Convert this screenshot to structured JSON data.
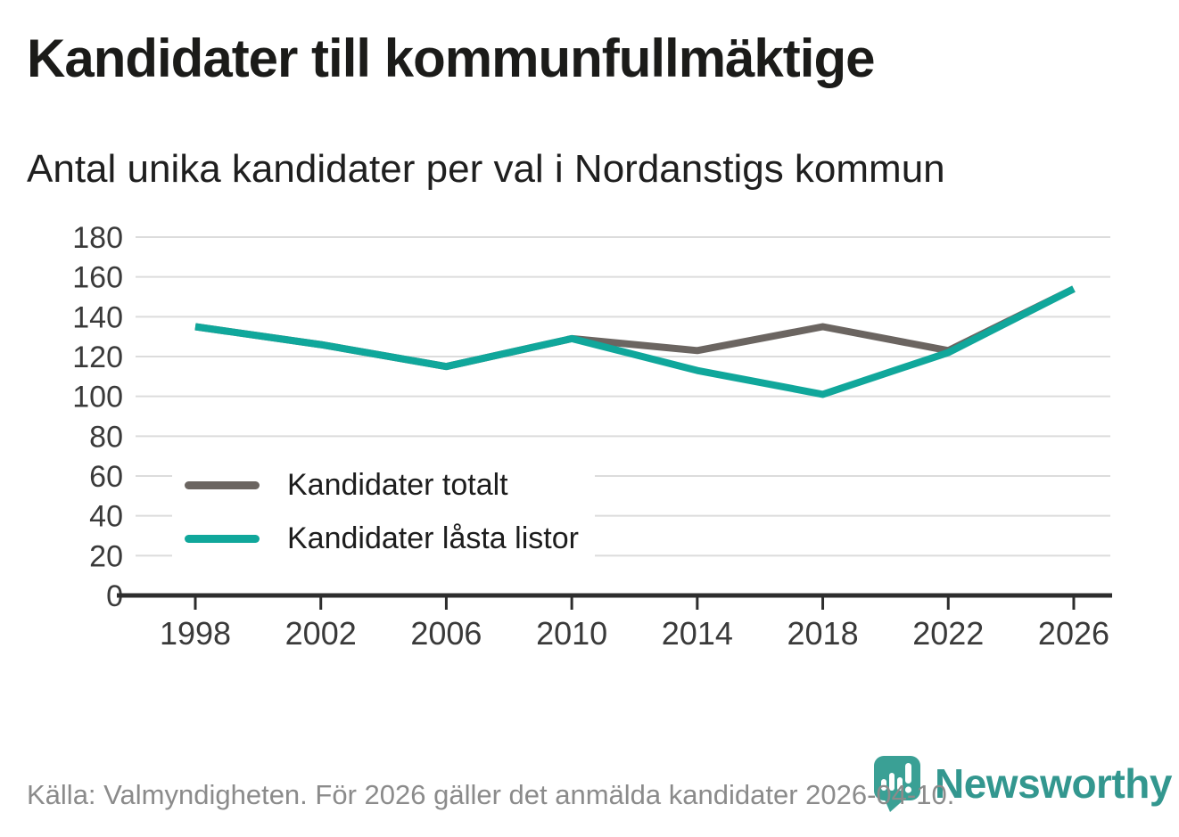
{
  "header": {
    "title": "Kandidater till kommunfullmäktige",
    "subtitle": "Antal unika kandidater per val i Nordanstigs kommun"
  },
  "chart_data": {
    "type": "line",
    "x": [
      1998,
      2002,
      2006,
      2010,
      2014,
      2018,
      2022,
      2026
    ],
    "series": [
      {
        "name": "Kandidater totalt",
        "color": "#6b6561",
        "values": [
          135,
          126,
          115,
          129,
          123,
          135,
          123,
          154
        ]
      },
      {
        "name": "Kandidater låsta listor",
        "color": "#10a79b",
        "values": [
          135,
          126,
          115,
          129,
          113,
          101,
          122,
          154
        ]
      }
    ],
    "ylim": [
      0,
      180
    ],
    "ytick_step": 20,
    "xlabel": "",
    "ylabel": "",
    "grid": "horizontal",
    "legend_position": "inside-left-middle",
    "note": "Series overlap 1998-2010 and at 2026; teal drawn on top of gray"
  },
  "footer": {
    "source": "Källa: Valmyndigheten. För 2026 gäller det anmälda kandidater 2026-04-10.",
    "logo_text": "Newsworthy"
  },
  "colors": {
    "gridline": "#dcdcdc",
    "axis_line": "#2d2d2d",
    "axis_text": "#3a3a3a",
    "title_text": "#1b1b19",
    "footer_text": "#8b8b8b",
    "brand_pin": "#3aa095",
    "brand_wordmark": "#33978f",
    "background": "#ffffff"
  }
}
